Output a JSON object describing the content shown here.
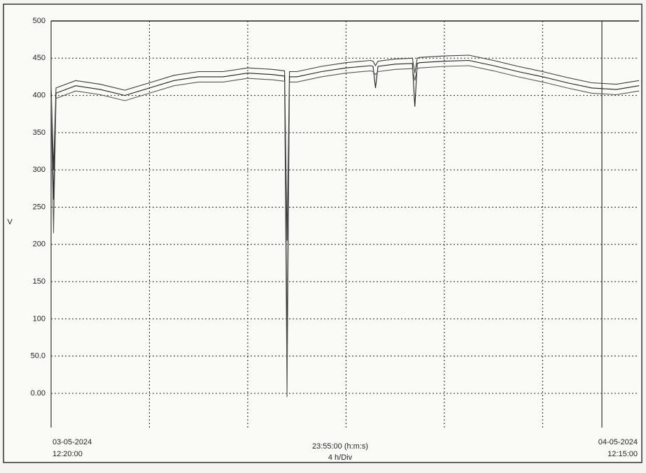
{
  "chart_data": {
    "type": "line",
    "y_label": "V",
    "x_labels": {
      "start": [
        "03-05-2024",
        "12:20:00"
      ],
      "center": [
        "23:55:00 (h:m:s)",
        "4 h/Div"
      ],
      "end": [
        "04-05-2024",
        "12:15:00"
      ]
    },
    "xlim": [
      0,
      23.92
    ],
    "xgrid": [
      4,
      8,
      12,
      16,
      20
    ],
    "ylim": [
      -46,
      500
    ],
    "yticks": [
      {
        "value": 0,
        "label": "0.00"
      },
      {
        "value": 50,
        "label": "50.0"
      },
      100,
      150,
      200,
      250,
      300,
      350,
      400,
      450,
      500
    ],
    "grid": true,
    "x": [
      0,
      0.1,
      0.2,
      1,
      2,
      3,
      4,
      5,
      6,
      7,
      8,
      9,
      9.5,
      9.6,
      9.7,
      10,
      11,
      12,
      13,
      13.1,
      13.2,
      13.3,
      14,
      14.7,
      14.8,
      14.9,
      15,
      16,
      17,
      18,
      19,
      20,
      21,
      22,
      23,
      23.92
    ],
    "series": [
      {
        "color": "#3a3a3a",
        "values": [
          412,
          300,
          410,
          420,
          415,
          407,
          417,
          427,
          432,
          432,
          437,
          435,
          433,
          205,
          432,
          432,
          439,
          444,
          447,
          446,
          440,
          446,
          449,
          450,
          430,
          450,
          451,
          453,
          454,
          447,
          439,
          432,
          424,
          417,
          415,
          420
        ]
      },
      {
        "color": "#1e1e1e",
        "values": [
          405,
          260,
          403,
          413,
          408,
          400,
          410,
          420,
          425,
          425,
          430,
          428,
          426,
          65,
          425,
          425,
          432,
          437,
          440,
          439,
          410,
          439,
          442,
          443,
          385,
          443,
          444,
          446,
          447,
          440,
          432,
          425,
          417,
          410,
          408,
          413
        ]
      },
      {
        "color": "#555555",
        "values": [
          398,
          215,
          396,
          406,
          401,
          393,
          403,
          413,
          418,
          418,
          423,
          421,
          419,
          -5,
          418,
          418,
          425,
          430,
          433,
          432,
          428,
          432,
          435,
          436,
          420,
          436,
          437,
          439,
          440,
          433,
          425,
          418,
          410,
          403,
          401,
          406
        ]
      }
    ]
  }
}
